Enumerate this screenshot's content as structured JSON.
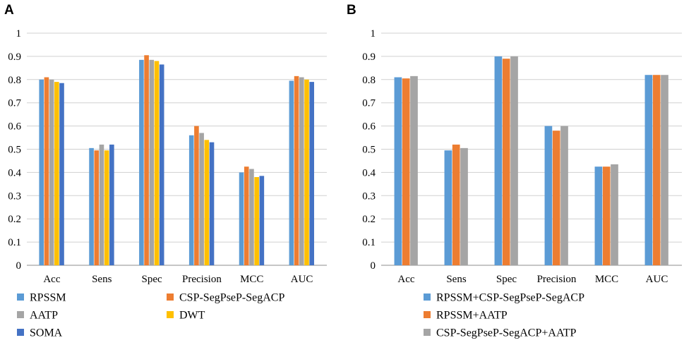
{
  "chart_data": [
    {
      "panel_label": "A",
      "type": "bar",
      "categories": [
        "Acc",
        "Sens",
        "Spec",
        "Precision",
        "MCC",
        "AUC"
      ],
      "ylim": [
        0,
        1
      ],
      "yticks": [
        "0",
        "0.1",
        "0.2",
        "0.3",
        "0.4",
        "0.5",
        "0.6",
        "0.7",
        "0.8",
        "0.9",
        "1"
      ],
      "grid": true,
      "legend_position": "bottom",
      "series": [
        {
          "name": "RPSSM",
          "color": "#5b9bd5",
          "values": [
            0.8,
            0.505,
            0.885,
            0.56,
            0.4,
            0.795
          ]
        },
        {
          "name": "CSP-SegPseP-SegACP",
          "color": "#ed7d31",
          "values": [
            0.81,
            0.495,
            0.905,
            0.6,
            0.425,
            0.815
          ]
        },
        {
          "name": "AATP",
          "color": "#a5a5a5",
          "values": [
            0.8,
            0.52,
            0.885,
            0.57,
            0.415,
            0.81
          ]
        },
        {
          "name": "DWT",
          "color": "#ffc000",
          "values": [
            0.79,
            0.495,
            0.88,
            0.54,
            0.38,
            0.8
          ]
        },
        {
          "name": "SOMA",
          "color": "#4472c4",
          "values": [
            0.785,
            0.52,
            0.865,
            0.53,
            0.385,
            0.79
          ]
        }
      ]
    },
    {
      "panel_label": "B",
      "type": "bar",
      "categories": [
        "Acc",
        "Sens",
        "Spec",
        "Precision",
        "MCC",
        "AUC"
      ],
      "ylim": [
        0,
        1
      ],
      "yticks": [
        "0",
        "0.1",
        "0.2",
        "0.3",
        "0.4",
        "0.5",
        "0.6",
        "0.7",
        "0.8",
        "0.9",
        "1"
      ],
      "grid": true,
      "legend_position": "bottom",
      "series": [
        {
          "name": "RPSSM+CSP-SegPseP-SegACP",
          "color": "#5b9bd5",
          "values": [
            0.81,
            0.495,
            0.9,
            0.6,
            0.425,
            0.82
          ]
        },
        {
          "name": "RPSSM+AATP",
          "color": "#ed7d31",
          "values": [
            0.805,
            0.52,
            0.89,
            0.58,
            0.425,
            0.82
          ]
        },
        {
          "name": "CSP-SegPseP-SegACP+AATP",
          "color": "#a5a5a5",
          "values": [
            0.815,
            0.505,
            0.9,
            0.6,
            0.435,
            0.82
          ]
        }
      ]
    }
  ]
}
